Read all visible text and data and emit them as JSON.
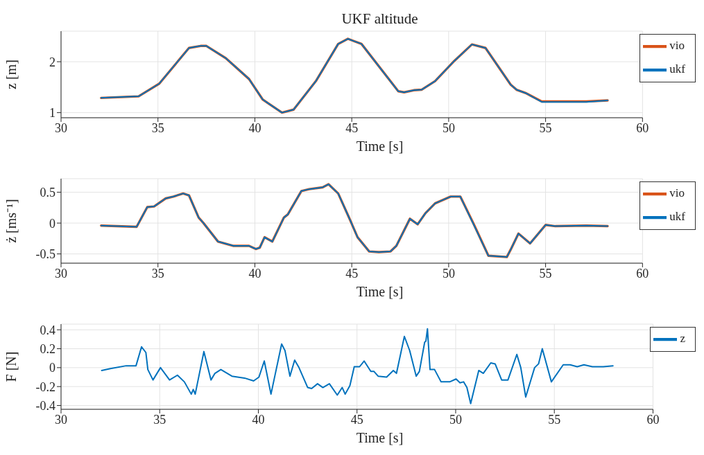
{
  "chart_data": [
    {
      "type": "line",
      "title": "UKF altitude",
      "xlabel": "Time [s]",
      "ylabel": "z [m]",
      "xlim": [
        30,
        60
      ],
      "xticks": [
        30,
        35,
        40,
        45,
        50,
        55,
        60
      ],
      "ylim": [
        0.9,
        2.6
      ],
      "yticks": [
        1,
        2
      ],
      "grid": true,
      "legend": "top right",
      "marker": "none",
      "line_style": "solid",
      "series": [
        {
          "name": "vio",
          "color": "#d95319",
          "x": [
            32.07,
            34.0,
            35.07,
            36.6,
            37.2,
            37.5,
            38.5,
            39.7,
            40.4,
            40.7,
            41.4,
            42.0,
            43.15,
            44.3,
            44.8,
            45.5,
            47.4,
            47.7,
            48.2,
            48.6,
            49.3,
            50.3,
            51.2,
            51.9,
            53.2,
            53.5,
            54.0,
            54.8,
            57.1,
            58.2
          ],
          "values": [
            1.29,
            1.32,
            1.57,
            2.27,
            2.31,
            2.31,
            2.07,
            1.66,
            1.26,
            1.18,
            1.0,
            1.06,
            1.62,
            2.35,
            2.45,
            2.35,
            1.42,
            1.4,
            1.44,
            1.45,
            1.62,
            2.02,
            2.34,
            2.27,
            1.55,
            1.45,
            1.38,
            1.22,
            1.22,
            1.24
          ]
        },
        {
          "name": "ukf",
          "color": "#0072bd",
          "x": [
            32.07,
            34.0,
            35.07,
            36.6,
            37.2,
            37.5,
            38.5,
            39.7,
            40.4,
            40.7,
            41.4,
            42.0,
            43.15,
            44.3,
            44.8,
            45.5,
            47.4,
            47.7,
            48.2,
            48.6,
            49.3,
            50.3,
            51.2,
            51.9,
            53.2,
            53.5,
            54.0,
            54.8,
            57.1,
            58.2
          ],
          "values": [
            1.29,
            1.32,
            1.57,
            2.27,
            2.31,
            2.31,
            2.07,
            1.66,
            1.26,
            1.18,
            1.0,
            1.06,
            1.62,
            2.35,
            2.45,
            2.35,
            1.42,
            1.4,
            1.44,
            1.45,
            1.62,
            2.02,
            2.34,
            2.27,
            1.55,
            1.45,
            1.38,
            1.21,
            1.21,
            1.24
          ]
        }
      ]
    },
    {
      "type": "line",
      "xlabel": "Time [s]",
      "ylabel": "ż [ms⁻¹]",
      "xlim": [
        30,
        60
      ],
      "xticks": [
        30,
        35,
        40,
        45,
        50,
        55,
        60
      ],
      "ylim": [
        -0.65,
        0.72
      ],
      "yticks": [
        -0.5,
        0,
        0.5
      ],
      "grid": true,
      "legend": "top right",
      "marker": "none",
      "line_style": "solid",
      "series": [
        {
          "name": "vio",
          "color": "#d95319",
          "x": [
            32.07,
            33.9,
            34.45,
            34.8,
            35.4,
            35.8,
            36.3,
            36.6,
            37.1,
            37.35,
            38.1,
            38.9,
            39.7,
            40.05,
            40.25,
            40.5,
            40.9,
            41.5,
            41.7,
            42.4,
            42.8,
            43.5,
            43.8,
            44.3,
            44.9,
            45.3,
            45.9,
            46.4,
            47.0,
            47.3,
            48.0,
            48.4,
            48.8,
            49.3,
            50.1,
            50.6,
            51.3,
            52.05,
            53.0,
            53.2,
            53.6,
            54.2,
            55.0,
            55.5,
            57.1,
            58.2
          ],
          "values": [
            -0.04,
            -0.06,
            0.26,
            0.27,
            0.4,
            0.43,
            0.48,
            0.45,
            0.09,
            0.0,
            -0.3,
            -0.37,
            -0.37,
            -0.42,
            -0.4,
            -0.23,
            -0.3,
            0.09,
            0.14,
            0.52,
            0.55,
            0.58,
            0.63,
            0.48,
            0.06,
            -0.23,
            -0.46,
            -0.47,
            -0.46,
            -0.37,
            0.07,
            -0.02,
            0.16,
            0.32,
            0.43,
            0.43,
            -0.02,
            -0.53,
            -0.55,
            -0.43,
            -0.17,
            -0.33,
            -0.03,
            -0.05,
            -0.04,
            -0.05
          ]
        },
        {
          "name": "ukf",
          "color": "#0072bd",
          "x": [
            32.07,
            33.9,
            34.45,
            34.8,
            35.4,
            35.8,
            36.3,
            36.6,
            37.1,
            37.35,
            38.1,
            38.9,
            39.7,
            40.05,
            40.25,
            40.5,
            40.9,
            41.5,
            41.7,
            42.4,
            42.8,
            43.5,
            43.8,
            44.3,
            44.9,
            45.3,
            45.9,
            46.4,
            47.0,
            47.3,
            48.0,
            48.4,
            48.8,
            49.3,
            50.1,
            50.6,
            51.3,
            52.05,
            53.0,
            53.2,
            53.6,
            54.2,
            55.0,
            55.5,
            57.1,
            58.2
          ],
          "values": [
            -0.04,
            -0.06,
            0.26,
            0.27,
            0.4,
            0.43,
            0.48,
            0.45,
            0.09,
            0.0,
            -0.3,
            -0.37,
            -0.37,
            -0.42,
            -0.4,
            -0.23,
            -0.3,
            0.09,
            0.14,
            0.52,
            0.55,
            0.58,
            0.63,
            0.48,
            0.06,
            -0.23,
            -0.46,
            -0.47,
            -0.46,
            -0.37,
            0.07,
            -0.02,
            0.16,
            0.32,
            0.43,
            0.43,
            -0.03,
            -0.53,
            -0.55,
            -0.43,
            -0.17,
            -0.33,
            -0.03,
            -0.05,
            -0.04,
            -0.05
          ]
        }
      ]
    },
    {
      "type": "line",
      "xlabel": "Time [s]",
      "ylabel": "F [N]",
      "xlim": [
        30,
        60
      ],
      "xticks": [
        30,
        35,
        40,
        45,
        50,
        55,
        60
      ],
      "ylim": [
        -0.44,
        0.46
      ],
      "yticks": [
        -0.4,
        -0.2,
        0,
        0.2,
        0.4
      ],
      "grid": true,
      "legend": "top right",
      "marker": "none",
      "line_style": "solid",
      "series": [
        {
          "name": "z",
          "color": "#0072bd",
          "x": [
            32.06,
            32.5,
            33.3,
            33.8,
            34.08,
            34.3,
            34.4,
            34.66,
            35.04,
            35.5,
            35.9,
            36.25,
            36.6,
            36.7,
            36.8,
            37.24,
            37.6,
            37.8,
            38.1,
            38.66,
            39.3,
            39.76,
            40.03,
            40.3,
            40.64,
            41.18,
            41.35,
            41.6,
            41.84,
            42.06,
            42.5,
            42.7,
            43.0,
            43.27,
            43.6,
            44.0,
            44.25,
            44.4,
            44.64,
            44.86,
            45.13,
            45.36,
            45.7,
            45.86,
            46.07,
            46.5,
            46.84,
            47.0,
            47.4,
            47.67,
            48.0,
            48.16,
            48.43,
            48.49,
            48.57,
            48.7,
            48.93,
            49.26,
            49.7,
            50.02,
            50.22,
            50.4,
            50.57,
            50.76,
            51.17,
            51.4,
            51.78,
            52.0,
            52.33,
            52.65,
            53.1,
            53.3,
            53.55,
            54.0,
            54.2,
            54.39,
            54.85,
            55.45,
            55.8,
            56.16,
            56.5,
            56.93,
            57.48,
            57.97
          ],
          "values": [
            -0.03,
            -0.01,
            0.02,
            0.02,
            0.22,
            0.16,
            -0.02,
            -0.13,
            0.0,
            -0.13,
            -0.08,
            -0.15,
            -0.28,
            -0.23,
            -0.28,
            0.17,
            -0.13,
            -0.06,
            -0.02,
            -0.09,
            -0.11,
            -0.14,
            -0.1,
            0.07,
            -0.28,
            0.25,
            0.18,
            -0.09,
            0.08,
            0.0,
            -0.21,
            -0.22,
            -0.17,
            -0.21,
            -0.17,
            -0.29,
            -0.21,
            -0.28,
            -0.19,
            0.01,
            0.01,
            0.07,
            -0.04,
            -0.04,
            -0.09,
            -0.1,
            -0.03,
            -0.06,
            0.33,
            0.18,
            -0.09,
            -0.04,
            0.27,
            0.28,
            0.41,
            -0.02,
            -0.02,
            -0.15,
            -0.15,
            -0.12,
            -0.16,
            -0.15,
            -0.21,
            -0.38,
            -0.03,
            -0.06,
            0.05,
            0.04,
            -0.13,
            -0.13,
            0.14,
            0.0,
            -0.31,
            0.0,
            0.04,
            0.2,
            -0.15,
            0.03,
            0.03,
            0.01,
            0.03,
            0.01,
            0.01,
            0.02
          ]
        }
      ]
    }
  ]
}
